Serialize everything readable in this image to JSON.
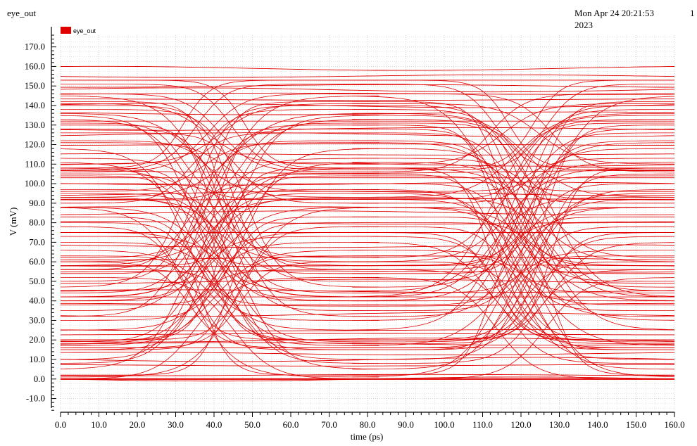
{
  "window": {
    "title": "eye_out",
    "timestamp_line1": "Mon Apr 24 20:21:53",
    "timestamp_line2": "2023",
    "page_number": "1"
  },
  "colors": {
    "trace": "#e00000",
    "grid": "#c8c8c8",
    "axis": "#000000",
    "background": "#ffffff"
  },
  "chart_data": {
    "type": "line",
    "subtype": "eye-diagram",
    "title": "",
    "xlabel": "time (ps)",
    "ylabel": "V (mV)",
    "xlim": [
      0,
      160
    ],
    "ylim": [
      -17,
      176
    ],
    "xticks": [
      0,
      10,
      20,
      30,
      40,
      50,
      60,
      70,
      80,
      90,
      100,
      110,
      120,
      130,
      140,
      150,
      160
    ],
    "yticks": [
      -10,
      0,
      10,
      20,
      30,
      40,
      50,
      60,
      70,
      80,
      90,
      100,
      110,
      120,
      130,
      140,
      150,
      160,
      170
    ],
    "xtick_labels": [
      "0.0",
      "10.0",
      "20.0",
      "30.0",
      "40.0",
      "50.0",
      "60.0",
      "70.0",
      "80.0",
      "90.0",
      "100.0",
      "110.0",
      "120.0",
      "130.0",
      "140.0",
      "150.0",
      "160.0"
    ],
    "ytick_labels": [
      "-10.0",
      "0.0",
      "10.0",
      "20.0",
      "30.0",
      "40.0",
      "50.0",
      "60.0",
      "70.0",
      "80.0",
      "90.0",
      "100.0",
      "110.0",
      "120.0",
      "130.0",
      "140.0",
      "150.0",
      "160.0",
      "170.0"
    ],
    "grid": true,
    "legend": {
      "placement": "top-left",
      "entries": [
        "eye_out"
      ]
    },
    "unit_interval_ps": 80,
    "crossing_times_ps": [
      40,
      120
    ],
    "series": [
      {
        "name": "eye_out",
        "levels_mv": [
          0,
          2,
          7,
          10,
          13,
          16,
          18,
          20,
          23,
          25,
          33,
          38,
          42,
          45,
          50,
          55,
          58,
          62,
          68,
          75,
          80,
          85,
          88,
          92,
          95,
          100,
          103,
          106,
          110,
          115,
          120,
          125,
          128,
          132,
          136,
          140,
          143,
          146,
          148,
          150,
          153,
          155,
          159
        ],
        "transitions": [
          {
            "from": 108,
            "to": 153
          },
          {
            "from": 107,
            "to": 151
          },
          {
            "from": 106,
            "to": 146
          },
          {
            "from": 110,
            "to": 141
          },
          {
            "from": 93,
            "to": 136
          },
          {
            "from": 92,
            "to": 131
          },
          {
            "from": 90,
            "to": 126
          },
          {
            "from": 96,
            "to": 121
          },
          {
            "from": 62,
            "to": 113
          },
          {
            "from": 60,
            "to": 108
          },
          {
            "from": 58,
            "to": 104
          },
          {
            "from": 56,
            "to": 100
          },
          {
            "from": 44,
            "to": 97
          },
          {
            "from": 42,
            "to": 93
          },
          {
            "from": 40,
            "to": 88
          },
          {
            "from": 38,
            "to": 83
          },
          {
            "from": 20,
            "to": 78
          },
          {
            "from": 19,
            "to": 73
          },
          {
            "from": 18,
            "to": 70
          },
          {
            "from": 17,
            "to": 66
          },
          {
            "from": 15,
            "to": 63
          },
          {
            "from": 16,
            "to": 60
          },
          {
            "from": 8,
            "to": 56
          },
          {
            "from": 0,
            "to": 52
          },
          {
            "from": 145,
            "to": 58
          },
          {
            "from": 142,
            "to": 54
          },
          {
            "from": 140,
            "to": 50
          },
          {
            "from": 138,
            "to": 47
          },
          {
            "from": 135,
            "to": 45
          },
          {
            "from": 133,
            "to": 42
          },
          {
            "from": 130,
            "to": 40
          },
          {
            "from": 128,
            "to": 35
          },
          {
            "from": 122,
            "to": 32
          },
          {
            "from": 118,
            "to": 30
          },
          {
            "from": 111,
            "to": 25
          },
          {
            "from": 108,
            "to": 20
          },
          {
            "from": 105,
            "to": 15
          },
          {
            "from": 95,
            "to": 10
          },
          {
            "from": 92,
            "to": 5
          },
          {
            "from": 88,
            "to": 1
          },
          {
            "from": 80,
            "to": 2
          },
          {
            "from": 75,
            "to": 20
          }
        ]
      }
    ]
  }
}
